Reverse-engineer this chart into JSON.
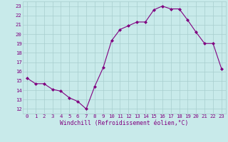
{
  "x": [
    0,
    1,
    2,
    3,
    4,
    5,
    6,
    7,
    8,
    9,
    10,
    11,
    12,
    13,
    14,
    15,
    16,
    17,
    18,
    19,
    20,
    21,
    22,
    23
  ],
  "y": [
    15.3,
    14.7,
    14.7,
    14.1,
    13.9,
    13.2,
    12.8,
    12.0,
    14.4,
    16.4,
    19.3,
    20.5,
    20.9,
    21.3,
    21.3,
    22.6,
    23.0,
    22.7,
    22.7,
    21.5,
    20.2,
    19.0,
    19.0,
    16.3
  ],
  "line_color": "#800080",
  "marker": "D",
  "markersize": 2.0,
  "linewidth": 0.8,
  "xlabel": "Windchill (Refroidissement éolien,°C)",
  "xlim": [
    -0.5,
    23.5
  ],
  "ylim": [
    11.5,
    23.5
  ],
  "yticks": [
    12,
    13,
    14,
    15,
    16,
    17,
    18,
    19,
    20,
    21,
    22,
    23
  ],
  "xticks": [
    0,
    1,
    2,
    3,
    4,
    5,
    6,
    7,
    8,
    9,
    10,
    11,
    12,
    13,
    14,
    15,
    16,
    17,
    18,
    19,
    20,
    21,
    22,
    23
  ],
  "grid_color": "#a8cece",
  "bg_color": "#c8eaea",
  "tick_label_fontsize": 5.2,
  "xlabel_fontsize": 5.8,
  "tick_color": "#800080"
}
